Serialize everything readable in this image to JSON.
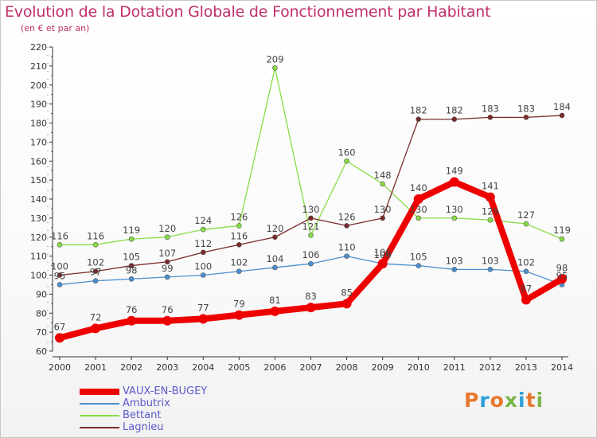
{
  "header": {
    "title": "Evolution de la Dotation Globale de Fonctionnement par Habitant",
    "subtitle": "(en € et par an)"
  },
  "logo": {
    "text": "Proxiti",
    "colors": [
      "#e8772e",
      "#2f9fd8",
      "#e8772e",
      "#7ab648",
      "#2f9fd8",
      "#e8772e",
      "#7ab648"
    ]
  },
  "chart_data": {
    "type": "line",
    "title": "Evolution de la Dotation Globale de Fonctionnement par Habitant",
    "subtitle": "(en € et par an)",
    "xlabel": "",
    "ylabel": "",
    "categories": [
      "2000",
      "2001",
      "2002",
      "2003",
      "2004",
      "2005",
      "2006",
      "2007",
      "2008",
      "2009",
      "2010",
      "2011",
      "2012",
      "2013",
      "2014"
    ],
    "ylim": [
      60,
      220
    ],
    "yticks": [
      60,
      70,
      80,
      90,
      100,
      110,
      120,
      130,
      140,
      150,
      160,
      170,
      180,
      190,
      200,
      210,
      220
    ],
    "grid": false,
    "legend_position": "bottom-left",
    "series": [
      {
        "name": "VAUX-EN-BUGEY",
        "color": "#ee0000",
        "values": [
          67,
          72,
          76,
          76,
          77,
          79,
          81,
          83,
          85,
          106,
          140,
          149,
          141,
          87,
          98
        ]
      },
      {
        "name": "Ambutrix",
        "color": "#4b8fd0",
        "values": [
          95,
          97,
          98,
          99,
          100,
          102,
          104,
          106,
          110,
          106,
          105,
          103,
          103,
          102,
          95
        ]
      },
      {
        "name": "Bettant",
        "color": "#88dd44",
        "values": [
          116,
          116,
          119,
          120,
          124,
          126,
          209,
          121,
          160,
          148,
          130,
          130,
          129,
          127,
          119
        ]
      },
      {
        "name": "Lagnieu",
        "color": "#7a2a2a",
        "values": [
          100,
          102,
          105,
          107,
          112,
          116,
          120,
          130,
          126,
          130,
          182,
          182,
          183,
          183,
          184
        ]
      }
    ],
    "data_labels": [
      {
        "series": "VAUX-EN-BUGEY",
        "labels": [
          "67",
          "72",
          "76",
          "76",
          "77",
          "79",
          "81",
          "83",
          "85",
          "106",
          "140",
          "149",
          "141",
          "87",
          "98"
        ]
      },
      {
        "series": "Ambutrix",
        "labels": [
          "95",
          "97",
          "98",
          "99",
          "100",
          "102",
          "104",
          "106",
          "110",
          "106",
          "105",
          "103",
          "103",
          "102",
          "95"
        ]
      },
      {
        "series": "Bettant",
        "labels": [
          "116",
          "116",
          "119",
          "120",
          "124",
          "126",
          "209",
          "121",
          "160",
          "148",
          "130",
          "130",
          "129",
          "127",
          "119"
        ]
      },
      {
        "series": "Lagnieu",
        "labels": [
          "100",
          "102",
          "105",
          "107",
          "112",
          "116",
          "120",
          "130",
          "126",
          "130",
          "182",
          "182",
          "183",
          "183",
          "184"
        ]
      }
    ]
  }
}
